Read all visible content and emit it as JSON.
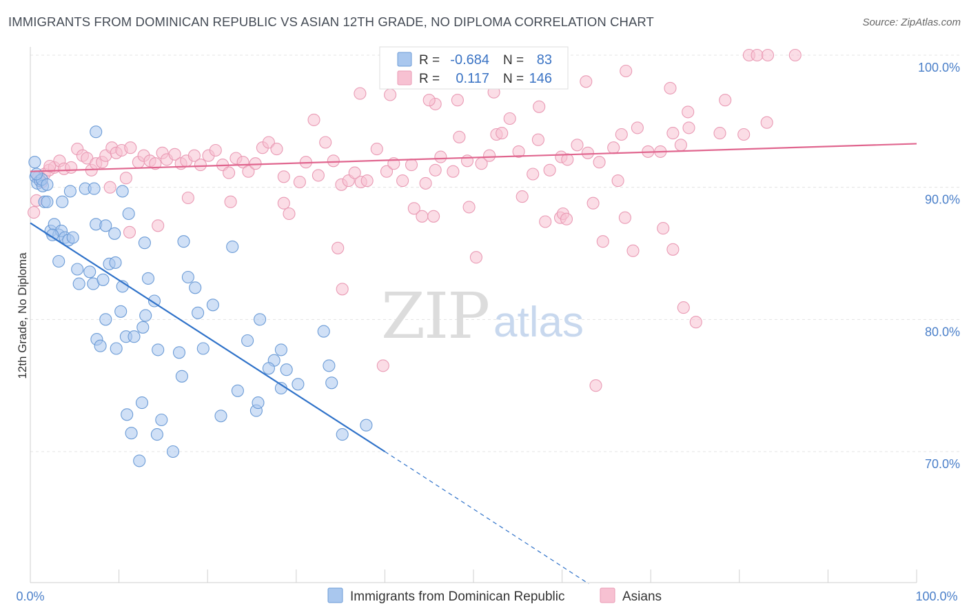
{
  "title": "IMMIGRANTS FROM DOMINICAN REPUBLIC VS ASIAN 12TH GRADE, NO DIPLOMA CORRELATION CHART",
  "source": "Source: ZipAtlas.com",
  "watermark": {
    "zip": "ZIP",
    "atlas": "atlas"
  },
  "colors": {
    "blue_fill": "#a9c7ee",
    "blue_stroke": "#6b9bd6",
    "blue_line": "#2f72c9",
    "pink_fill": "#f7c1d2",
    "pink_stroke": "#e99ab4",
    "pink_line": "#e0658e",
    "tick_text": "#4a7fc9",
    "grid": "#e3e3e3"
  },
  "legend": {
    "row1": {
      "r_label": "R =",
      "r_value": "-0.684",
      "n_label": "N =",
      "n_value": "83"
    },
    "row2": {
      "r_label": "R =",
      "r_value": "0.117",
      "n_label": "N =",
      "n_value": "146"
    }
  },
  "chart_data": {
    "type": "scatter",
    "xlabel": "",
    "ylabel": "12th Grade, No Diploma",
    "xlim": [
      0,
      100
    ],
    "ylim": [
      60,
      101.5
    ],
    "x_tick_labels": [
      "0.0%",
      "100.0%"
    ],
    "y_ticks": [
      70,
      80,
      90,
      100
    ],
    "y_tick_labels": [
      "70.0%",
      "80.0%",
      "90.0%",
      "100.0%"
    ],
    "grid": true,
    "legend_position": "top-center",
    "series": [
      {
        "name": "Immigrants from Dominican Republic",
        "color": "#a9c7ee",
        "trend": {
          "x0": 0,
          "y0": 87.3,
          "x1": 40,
          "y1": 70.0,
          "dashed_to_x": 63,
          "dashed_to_y": 60.0
        },
        "points": [
          [
            0.5,
            91.9
          ],
          [
            0.6,
            90.8
          ],
          [
            0.8,
            90.3
          ],
          [
            1.1,
            90.5
          ],
          [
            1.4,
            90.1
          ],
          [
            1.6,
            88.9
          ],
          [
            1.9,
            88.9
          ],
          [
            2.3,
            86.7
          ],
          [
            2.7,
            87.2
          ],
          [
            3.2,
            86.4
          ],
          [
            3.5,
            86.7
          ],
          [
            3.9,
            86.2
          ],
          [
            4.3,
            86.0
          ],
          [
            4.8,
            86.2
          ],
          [
            3.6,
            88.9
          ],
          [
            4.5,
            89.7
          ],
          [
            6.2,
            89.9
          ],
          [
            7.2,
            89.9
          ],
          [
            7.4,
            87.2
          ],
          [
            8.5,
            87.1
          ],
          [
            9.5,
            86.5
          ],
          [
            10.4,
            89.7
          ],
          [
            11.1,
            88.0
          ],
          [
            12.9,
            85.8
          ],
          [
            17.3,
            85.9
          ],
          [
            22.8,
            85.5
          ],
          [
            3.2,
            84.4
          ],
          [
            5.3,
            83.8
          ],
          [
            5.5,
            82.7
          ],
          [
            6.7,
            83.6
          ],
          [
            7.1,
            82.7
          ],
          [
            8.2,
            83.0
          ],
          [
            8.9,
            84.2
          ],
          [
            10.4,
            82.5
          ],
          [
            13.3,
            83.1
          ],
          [
            14.0,
            81.4
          ],
          [
            17.8,
            83.2
          ],
          [
            18.6,
            82.4
          ],
          [
            20.6,
            81.1
          ],
          [
            10.2,
            80.6
          ],
          [
            8.5,
            80.0
          ],
          [
            13.0,
            80.3
          ],
          [
            18.9,
            80.5
          ],
          [
            25.9,
            80.0
          ],
          [
            12.7,
            79.4
          ],
          [
            10.8,
            78.7
          ],
          [
            11.7,
            78.7
          ],
          [
            7.5,
            78.5
          ],
          [
            7.9,
            78.0
          ],
          [
            9.7,
            77.8
          ],
          [
            14.4,
            77.7
          ],
          [
            16.8,
            77.5
          ],
          [
            19.5,
            77.8
          ],
          [
            24.5,
            78.4
          ],
          [
            28.3,
            77.7
          ],
          [
            27.5,
            76.9
          ],
          [
            28.9,
            76.2
          ],
          [
            26.9,
            76.3
          ],
          [
            33.1,
            79.1
          ],
          [
            17.1,
            75.7
          ],
          [
            23.4,
            74.6
          ],
          [
            28.3,
            74.8
          ],
          [
            30.2,
            75.1
          ],
          [
            33.7,
            76.5
          ],
          [
            34.0,
            75.2
          ],
          [
            12.6,
            73.7
          ],
          [
            10.9,
            72.8
          ],
          [
            14.8,
            72.4
          ],
          [
            21.5,
            72.7
          ],
          [
            25.5,
            73.1
          ],
          [
            25.7,
            73.7
          ],
          [
            37.9,
            72.0
          ],
          [
            11.4,
            71.4
          ],
          [
            14.3,
            71.3
          ],
          [
            35.2,
            71.3
          ],
          [
            12.3,
            69.3
          ],
          [
            16.1,
            70.0
          ],
          [
            7.4,
            94.2
          ],
          [
            1.3,
            90.6
          ],
          [
            0.7,
            91.0
          ],
          [
            1.9,
            90.2
          ],
          [
            2.5,
            86.4
          ],
          [
            9.6,
            84.3
          ]
        ]
      },
      {
        "name": "Asians",
        "color": "#f7c1d2",
        "trend": {
          "x0": 0,
          "y0": 91.2,
          "x1": 100,
          "y1": 93.3
        },
        "points": [
          [
            0.4,
            88.1
          ],
          [
            0.7,
            89.0
          ],
          [
            1.3,
            90.4
          ],
          [
            1.6,
            91.0
          ],
          [
            2.1,
            91.3
          ],
          [
            2.7,
            91.5
          ],
          [
            3.3,
            92.0
          ],
          [
            3.8,
            91.4
          ],
          [
            4.6,
            91.5
          ],
          [
            5.3,
            92.9
          ],
          [
            5.9,
            92.4
          ],
          [
            6.4,
            92.2
          ],
          [
            6.9,
            91.3
          ],
          [
            7.4,
            91.8
          ],
          [
            8.1,
            91.9
          ],
          [
            8.5,
            92.4
          ],
          [
            9.2,
            93.0
          ],
          [
            9.7,
            92.6
          ],
          [
            10.3,
            92.8
          ],
          [
            11.3,
            93.0
          ],
          [
            12.2,
            91.9
          ],
          [
            12.8,
            92.4
          ],
          [
            13.5,
            92.0
          ],
          [
            14.1,
            91.8
          ],
          [
            14.9,
            92.6
          ],
          [
            15.4,
            92.1
          ],
          [
            16.3,
            92.5
          ],
          [
            17.0,
            91.8
          ],
          [
            17.6,
            92.0
          ],
          [
            18.5,
            92.4
          ],
          [
            19.2,
            91.7
          ],
          [
            20.1,
            92.4
          ],
          [
            20.9,
            92.8
          ],
          [
            21.7,
            91.7
          ],
          [
            22.4,
            91.1
          ],
          [
            23.2,
            92.2
          ],
          [
            24.0,
            91.9
          ],
          [
            24.6,
            91.2
          ],
          [
            25.4,
            91.8
          ],
          [
            26.2,
            93.0
          ],
          [
            26.9,
            93.4
          ],
          [
            27.8,
            92.9
          ],
          [
            28.6,
            90.8
          ],
          [
            30.4,
            90.4
          ],
          [
            31.1,
            91.9
          ],
          [
            32.5,
            90.9
          ],
          [
            33.3,
            93.4
          ],
          [
            34.2,
            92.0
          ],
          [
            35.1,
            90.2
          ],
          [
            35.9,
            90.5
          ],
          [
            36.6,
            91.1
          ],
          [
            37.3,
            90.4
          ],
          [
            38.0,
            90.5
          ],
          [
            39.1,
            92.9
          ],
          [
            40.2,
            91.2
          ],
          [
            41.0,
            91.8
          ],
          [
            42.0,
            90.5
          ],
          [
            43.0,
            91.7
          ],
          [
            44.6,
            90.3
          ],
          [
            45.7,
            91.3
          ],
          [
            46.3,
            92.3
          ],
          [
            47.7,
            91.2
          ],
          [
            48.4,
            93.8
          ],
          [
            49.3,
            92.0
          ],
          [
            50.9,
            91.8
          ],
          [
            51.8,
            92.4
          ],
          [
            52.6,
            94.0
          ],
          [
            53.2,
            94.1
          ],
          [
            54.1,
            95.2
          ],
          [
            55.1,
            92.7
          ],
          [
            56.7,
            91.0
          ],
          [
            57.3,
            93.6
          ],
          [
            58.6,
            91.3
          ],
          [
            59.9,
            92.3
          ],
          [
            60.6,
            92.1
          ],
          [
            61.7,
            93.2
          ],
          [
            62.9,
            92.6
          ],
          [
            64.2,
            91.9
          ],
          [
            65.8,
            93.0
          ],
          [
            66.7,
            94.0
          ],
          [
            68.5,
            94.5
          ],
          [
            69.7,
            92.7
          ],
          [
            71.1,
            92.7
          ],
          [
            72.5,
            94.1
          ],
          [
            73.4,
            93.2
          ],
          [
            74.3,
            94.5
          ],
          [
            77.8,
            94.1
          ],
          [
            83.1,
            94.9
          ],
          [
            0.9,
            90.8
          ],
          [
            2.2,
            91.6
          ],
          [
            10.8,
            90.7
          ],
          [
            17.8,
            89.2
          ],
          [
            22.6,
            88.9
          ],
          [
            28.6,
            88.8
          ],
          [
            29.2,
            88.0
          ],
          [
            43.3,
            88.4
          ],
          [
            44.2,
            87.8
          ],
          [
            45.5,
            87.8
          ],
          [
            49.5,
            88.5
          ],
          [
            55.5,
            89.3
          ],
          [
            58.1,
            87.4
          ],
          [
            59.8,
            87.7
          ],
          [
            60.1,
            88.0
          ],
          [
            60.5,
            87.6
          ],
          [
            67.1,
            87.7
          ],
          [
            68.0,
            85.2
          ],
          [
            66.3,
            90.5
          ],
          [
            63.5,
            88.8
          ],
          [
            71.4,
            86.9
          ],
          [
            72.5,
            85.3
          ],
          [
            74.2,
            95.7
          ],
          [
            80.5,
            94.0
          ],
          [
            78.4,
            96.6
          ],
          [
            72.2,
            97.5
          ],
          [
            9.0,
            90.0
          ],
          [
            11.2,
            86.6
          ],
          [
            14.4,
            87.1
          ],
          [
            34.7,
            85.4
          ],
          [
            35.2,
            82.3
          ],
          [
            50.3,
            84.7
          ],
          [
            64.6,
            85.9
          ],
          [
            73.7,
            80.9
          ],
          [
            75.1,
            79.8
          ],
          [
            39.8,
            76.5
          ],
          [
            63.8,
            75.0
          ],
          [
            45.7,
            96.3
          ],
          [
            37.2,
            97.1
          ],
          [
            32.0,
            95.1
          ],
          [
            45.0,
            96.6
          ],
          [
            40.6,
            97.0
          ],
          [
            48.2,
            96.6
          ],
          [
            52.3,
            97.2
          ],
          [
            57.4,
            96.1
          ],
          [
            56.1,
            98.1
          ],
          [
            62.7,
            98.0
          ],
          [
            67.2,
            98.8
          ],
          [
            81.1,
            100.0
          ],
          [
            82.0,
            100.0
          ],
          [
            83.2,
            100.0
          ],
          [
            86.3,
            100.0
          ]
        ]
      }
    ]
  },
  "bottom_legend": {
    "series1_label": "Immigrants from Dominican Republic",
    "series2_label": "Asians"
  }
}
